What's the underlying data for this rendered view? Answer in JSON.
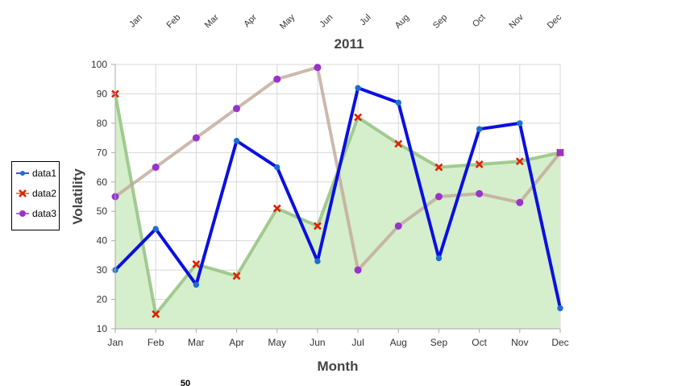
{
  "chart_data": {
    "type": "line",
    "title": "2011",
    "xlabel": "Month",
    "ylabel": "Volatility",
    "categories": [
      "Jan",
      "Feb",
      "Mar",
      "Apr",
      "May",
      "Jun",
      "Jul",
      "Aug",
      "Sep",
      "Oct",
      "Nov",
      "Dec"
    ],
    "top_axis_categories": [
      "Jan",
      "Feb",
      "Mar",
      "Apr",
      "May",
      "Jun",
      "Jul",
      "Aug",
      "Sep",
      "Oct",
      "Nov",
      "Dec"
    ],
    "ylim": [
      10,
      100
    ],
    "yticks": [
      10,
      20,
      30,
      40,
      50,
      60,
      70,
      80,
      90,
      100
    ],
    "grid": true,
    "legend_position": "left",
    "series": [
      {
        "name": "data1",
        "values": [
          30,
          44,
          25,
          74,
          65,
          33,
          92,
          87,
          34,
          78,
          80,
          17
        ],
        "color": "#0a10e0",
        "marker": "circle",
        "marker_color": "#1a6fd0",
        "style": "line"
      },
      {
        "name": "data2",
        "values": [
          90,
          15,
          32,
          28,
          51,
          45,
          82,
          73,
          65,
          66,
          67,
          70
        ],
        "color": "#8fbf7a",
        "marker": "x",
        "marker_color": "#dd2200",
        "style": "area",
        "fill": "#d5eecb"
      },
      {
        "name": "data3",
        "values": [
          55,
          65,
          75,
          85,
          95,
          99,
          30,
          45,
          55,
          56,
          53,
          70
        ],
        "color": "#c0a898",
        "marker": "circle",
        "marker_color": "#9933cc",
        "style": "line"
      }
    ],
    "footer_value": "50"
  }
}
